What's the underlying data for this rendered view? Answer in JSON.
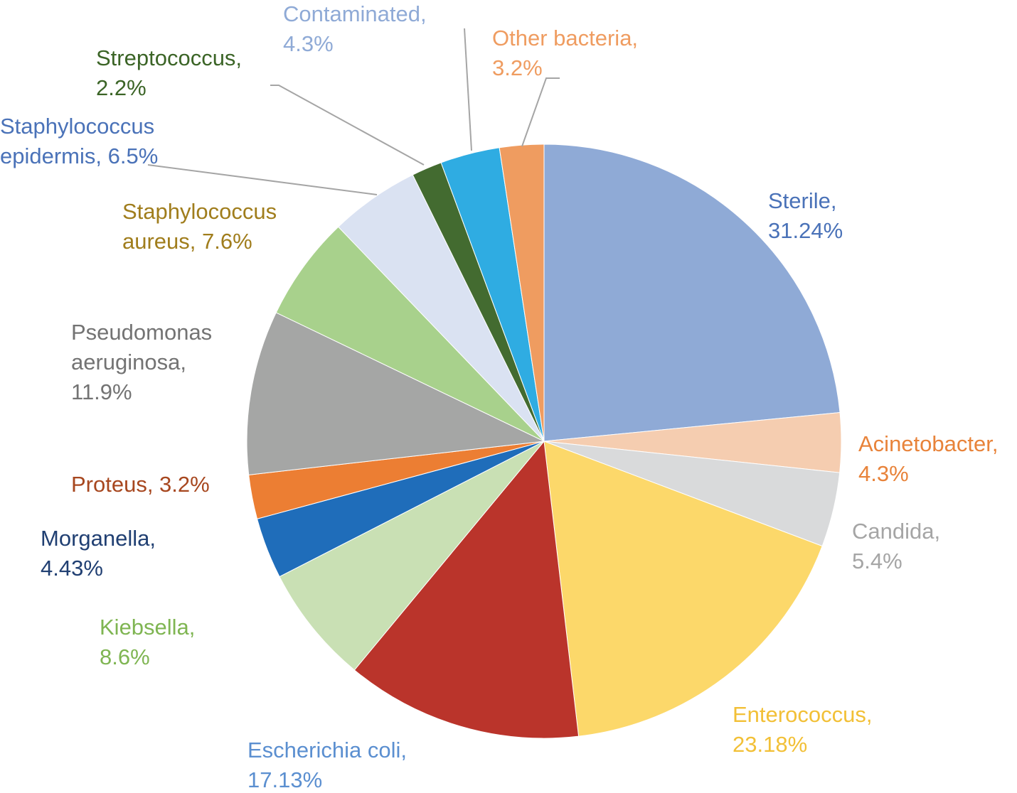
{
  "chart_data": {
    "type": "pie",
    "title": "",
    "slices": [
      {
        "name": "Sterile",
        "value": 31.24,
        "label_lines": [
          "Sterile,",
          "31.24%"
        ],
        "color": "#8FAAD6",
        "label_color": "#4A72B8"
      },
      {
        "name": "Acinetobacter",
        "value": 4.3,
        "label_lines": [
          "Acinetobacter,",
          "4.3%"
        ],
        "color": "#F5CDB0",
        "label_color": "#E8833A"
      },
      {
        "name": "Candida",
        "value": 5.4,
        "label_lines": [
          "Candida,",
          "5.4%"
        ],
        "color": "#D9DADB",
        "label_color": "#A5A5A5"
      },
      {
        "name": "Enterococcus",
        "value": 23.18,
        "label_lines": [
          "Enterococcus,",
          "23.18%"
        ],
        "color": "#FCD86A",
        "label_color": "#F2C037"
      },
      {
        "name": "Escherichia coli",
        "value": 17.13,
        "label_lines": [
          "Escherichia coli,",
          "17.13%"
        ],
        "color": "#BA342B",
        "label_color": "#5B8FD0"
      },
      {
        "name": "Kiebsella",
        "value": 8.6,
        "label_lines": [
          "Kiebsella,",
          "8.6%"
        ],
        "color": "#C9E0B4",
        "label_color": "#7FB552"
      },
      {
        "name": "Morganella",
        "value": 4.43,
        "label_lines": [
          "Morganella,",
          "4.43%"
        ],
        "color": "#1F6DBA",
        "label_color": "#203F72"
      },
      {
        "name": "Proteus",
        "value": 3.2,
        "label_lines": [
          "Proteus, 3.2%"
        ],
        "color": "#EC7E33",
        "label_color": "#A7471F"
      },
      {
        "name": "Pseudomonas aeruginosa",
        "value": 11.9,
        "label_lines": [
          "Pseudomonas",
          "aeruginosa,",
          "11.9%"
        ],
        "color": "#A5A6A5",
        "label_color": "#737373"
      },
      {
        "name": "Staphylococcus aureus",
        "value": 7.6,
        "label_lines": [
          "Staphylococcus",
          "aureus, 7.6%"
        ],
        "color": "#A8D18C",
        "label_color": "#A07D1C"
      },
      {
        "name": "Staphylococcus epidermis",
        "value": 6.5,
        "label_lines": [
          "Staphylococcus",
          "epidermis, 6.5%"
        ],
        "color": "#DAE2F2",
        "label_color": "#4A72B8"
      },
      {
        "name": "Streptococcus",
        "value": 2.2,
        "label_lines": [
          "Streptococcus,",
          "2.2%"
        ],
        "color": "#436B30",
        "label_color": "#3B6426"
      },
      {
        "name": "Contaminated",
        "value": 4.3,
        "label_lines": [
          "Contaminated,",
          "4.3%"
        ],
        "color": "#2FACE2",
        "label_color": "#8FAAD6"
      },
      {
        "name": "Other bacteria",
        "value": 3.2,
        "label_lines": [
          "Other bacteria,",
          "3.2%"
        ],
        "color": "#EF9C60",
        "label_color": "#EF9C60"
      }
    ],
    "start_position": "12 o'clock",
    "direction": "clockwise",
    "legend": "none (data labels beside slices)"
  }
}
